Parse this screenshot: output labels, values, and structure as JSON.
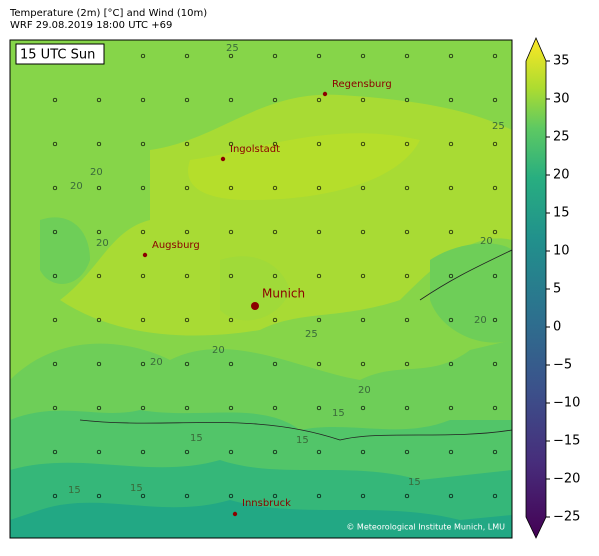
{
  "header": {
    "title": "Temperature (2m) [°C] and Wind (10m)",
    "subtitle": "WRF 29.08.2019 18:00 UTC +69"
  },
  "map": {
    "time_label": "15 UTC Sun",
    "cities": [
      {
        "name": "Regensburg"
      },
      {
        "name": "Ingolstadt"
      },
      {
        "name": "Augsburg"
      },
      {
        "name": "Munich"
      },
      {
        "name": "Innsbruck"
      }
    ],
    "contour_labels": [
      25,
      25,
      20,
      20,
      20,
      20,
      25,
      20,
      20,
      20,
      20,
      15,
      15,
      15,
      15,
      15,
      15
    ],
    "credit": "© Meteorological Institute Munich, LMU"
  },
  "colorbar": {
    "lim": [
      -25,
      35
    ],
    "ticks": [
      35,
      30,
      25,
      20,
      15,
      10,
      5,
      0,
      {
        "value": -5,
        "label": "−5"
      },
      {
        "value": -10,
        "label": "−10"
      },
      {
        "value": -15,
        "label": "−15"
      },
      {
        "value": -20,
        "label": "−20"
      },
      {
        "value": -25,
        "label": "−25"
      }
    ]
  }
}
